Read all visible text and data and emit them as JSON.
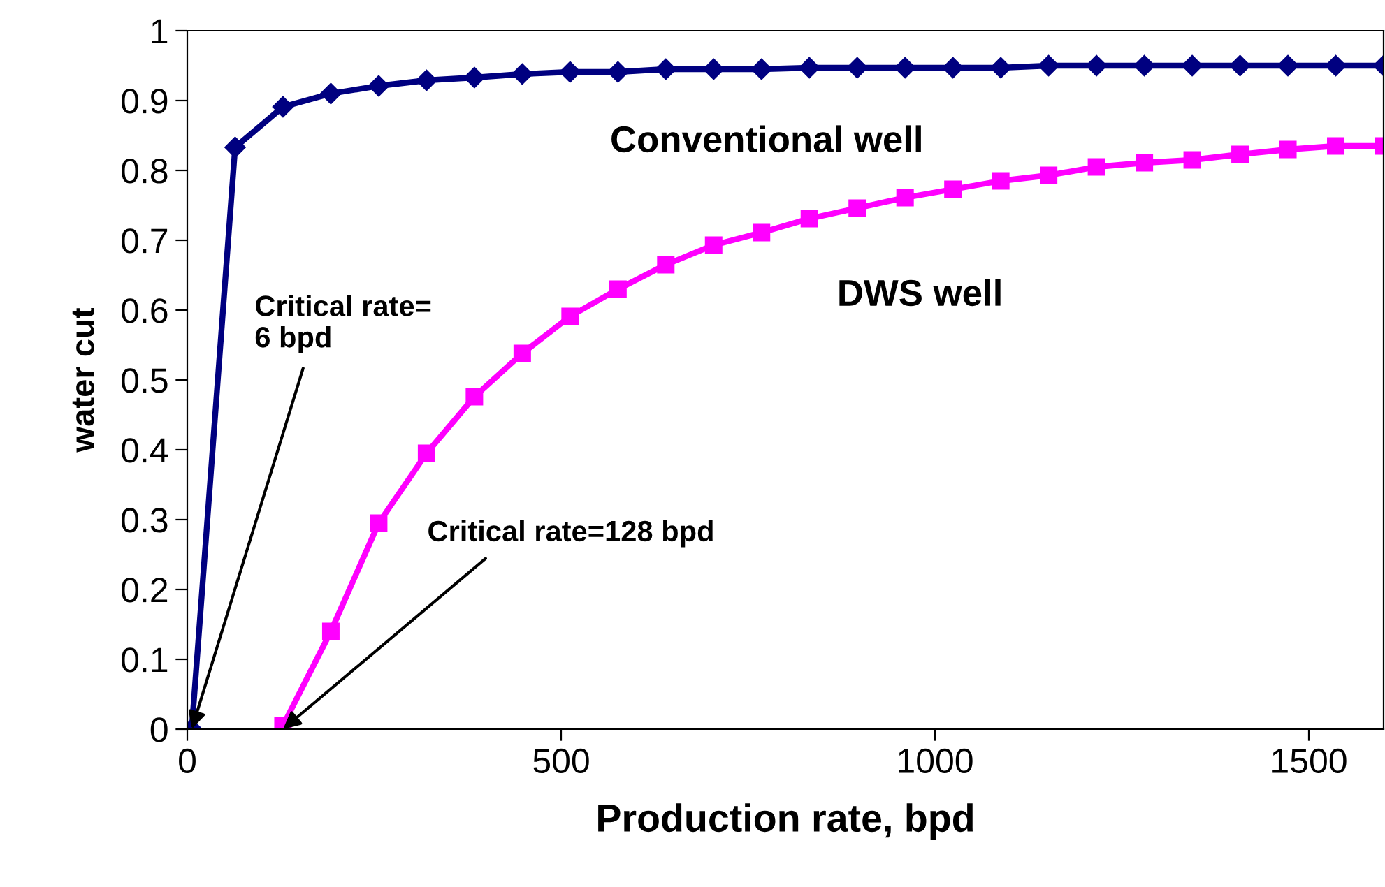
{
  "chart_data": {
    "type": "line",
    "xlabel": "Production rate, bpd",
    "ylabel": "water cut",
    "xlim": [
      0,
      1600
    ],
    "xticks": [
      0,
      500,
      1000,
      1500
    ],
    "ylim": [
      0,
      1
    ],
    "yticks": [
      0,
      0.1,
      0.2,
      0.3,
      0.4,
      0.5,
      0.6,
      0.7,
      0.8,
      0.9,
      1
    ],
    "grid": false,
    "legend": false,
    "line_style": "solid",
    "series": [
      {
        "name": "Conventional well",
        "color": "#000080",
        "marker": "diamond",
        "x": [
          6,
          64,
          128,
          192,
          256,
          320,
          384,
          448,
          512,
          576,
          640,
          704,
          768,
          832,
          896,
          960,
          1024,
          1088,
          1152,
          1216,
          1280,
          1344,
          1408,
          1472,
          1536,
          1600
        ],
        "values": [
          0,
          0.833,
          0.891,
          0.91,
          0.921,
          0.929,
          0.933,
          0.938,
          0.941,
          0.941,
          0.945,
          0.945,
          0.945,
          0.947,
          0.947,
          0.947,
          0.947,
          0.947,
          0.95,
          0.95,
          0.95,
          0.95,
          0.95,
          0.95,
          0.95,
          0.95
        ]
      },
      {
        "name": "DWS well",
        "color": "#ff00ff",
        "marker": "square",
        "x": [
          128,
          192,
          256,
          320,
          384,
          448,
          512,
          576,
          640,
          704,
          768,
          832,
          896,
          960,
          1024,
          1088,
          1152,
          1216,
          1280,
          1344,
          1408,
          1472,
          1536,
          1600
        ],
        "values": [
          0.005,
          0.14,
          0.295,
          0.395,
          0.476,
          0.538,
          0.591,
          0.63,
          0.665,
          0.693,
          0.711,
          0.731,
          0.746,
          0.761,
          0.773,
          0.785,
          0.793,
          0.805,
          0.811,
          0.815,
          0.823,
          0.83,
          0.835,
          0.835
        ]
      }
    ],
    "annotations": [
      {
        "text": "Critical rate=\n6 bpd",
        "x": 6,
        "y": 0
      },
      {
        "text": "Critical rate=128 bpd",
        "x": 128,
        "y": 0
      }
    ]
  }
}
